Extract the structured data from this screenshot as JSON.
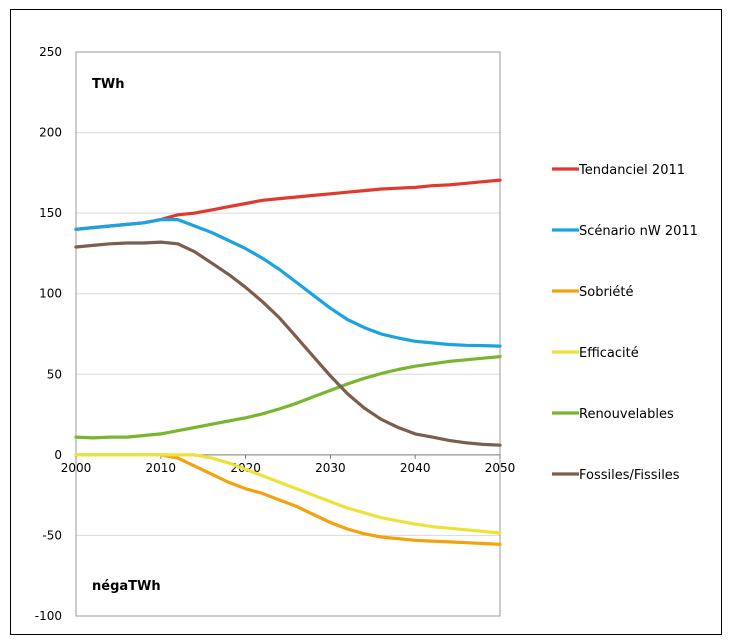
{
  "chart_data": {
    "type": "line",
    "x": [
      2000,
      2002,
      2004,
      2006,
      2008,
      2010,
      2012,
      2014,
      2016,
      2018,
      2020,
      2022,
      2024,
      2026,
      2028,
      2030,
      2032,
      2034,
      2036,
      2038,
      2040,
      2042,
      2044,
      2046,
      2048,
      2050
    ],
    "xlim": [
      2000,
      2050
    ],
    "ylim": [
      -100,
      250
    ],
    "xticks": [
      "2000",
      "2010",
      "2020",
      "2030",
      "2040",
      "2050"
    ],
    "yticks": [
      "250",
      "200",
      "150",
      "100",
      "50",
      "0",
      "-50",
      "-100"
    ],
    "grid": true,
    "legend_position": "right",
    "annotations": {
      "upper_unit": "TWh",
      "lower_unit": "négaTWh"
    },
    "series": [
      {
        "name": "Tendanciel 2011",
        "color": "#e03a2f",
        "values": [
          140,
          141,
          142,
          143,
          144,
          146,
          149,
          150,
          152,
          154,
          156,
          158,
          159,
          160,
          161,
          162,
          163,
          164,
          165,
          165.5,
          166,
          167,
          167.5,
          168.5,
          169.5,
          170.5
        ]
      },
      {
        "name": "Scénario nW 2011",
        "color": "#1aa3e0",
        "values": [
          140,
          141,
          142,
          143,
          144,
          146,
          146,
          142,
          138,
          133,
          128,
          122,
          115,
          107,
          99,
          91,
          84,
          79,
          75,
          72.5,
          70.5,
          69.5,
          68.5,
          68,
          67.8,
          67.5
        ]
      },
      {
        "name": "Sobriété",
        "color": "#f4a20c",
        "values": [
          0,
          0,
          0,
          0,
          0,
          0,
          -2,
          -7,
          -12,
          -17,
          -21,
          -24,
          -28,
          -32,
          -37,
          -42,
          -46,
          -49,
          -51,
          -52,
          -53,
          -53.5,
          -54,
          -54.5,
          -55,
          -55.5
        ]
      },
      {
        "name": "Efficacité",
        "color": "#ece33a",
        "values": [
          0,
          0,
          0,
          0,
          0,
          0,
          0,
          0,
          -2,
          -5,
          -9,
          -13,
          -17,
          -21,
          -25,
          -29,
          -33,
          -36,
          -39,
          -41,
          -43,
          -44.5,
          -45.5,
          -46.5,
          -47.5,
          -48.5
        ]
      },
      {
        "name": "Renouvelables",
        "color": "#7ab530",
        "values": [
          11,
          10.5,
          11,
          11,
          12,
          13,
          15,
          17,
          19,
          21,
          23,
          25.5,
          28.5,
          32,
          36,
          40,
          44,
          47.5,
          50.5,
          53,
          55,
          56.5,
          58,
          59,
          60,
          61
        ]
      },
      {
        "name": "Fossiles/Fissiles",
        "color": "#7b5e4b",
        "values": [
          129,
          130,
          131,
          131.5,
          131.5,
          132,
          131,
          126,
          119,
          112,
          104,
          95,
          85,
          73,
          61,
          49,
          38,
          29,
          22,
          17,
          13,
          11,
          9,
          7.5,
          6.5,
          6
        ]
      }
    ]
  }
}
